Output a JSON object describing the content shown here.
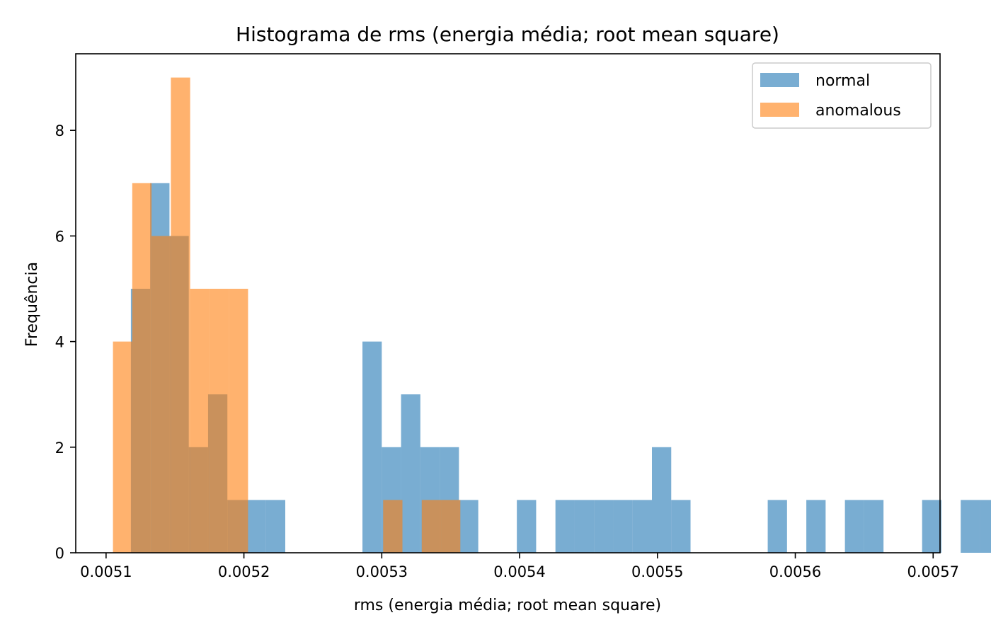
{
  "chart_data": {
    "type": "bar",
    "histogram": true,
    "title": "Histograma de rms (energia média; root mean square)",
    "xlabel": "rms (energia média; root mean square)",
    "ylabel": "Frequência",
    "xlim": [
      0.005078,
      0.005705
    ],
    "ylim": [
      0,
      9.45
    ],
    "grid": false,
    "legend_position": "top-right",
    "x_ticks": [
      {
        "value": 0.0051,
        "label": "0.0051"
      },
      {
        "value": 0.0052,
        "label": "0.0052"
      },
      {
        "value": 0.0053,
        "label": "0.0053"
      },
      {
        "value": 0.0054,
        "label": "0.0054"
      },
      {
        "value": 0.0055,
        "label": "0.0055"
      },
      {
        "value": 0.0056,
        "label": "0.0056"
      },
      {
        "value": 0.0057,
        "label": "0.0057"
      }
    ],
    "y_ticks": [
      {
        "value": 0,
        "label": "0"
      },
      {
        "value": 2,
        "label": "2"
      },
      {
        "value": 4,
        "label": "4"
      },
      {
        "value": 6,
        "label": "6"
      },
      {
        "value": 8,
        "label": "8"
      }
    ],
    "series": [
      {
        "name": "normal",
        "color": "#1f77b4",
        "opacity": 0.6,
        "bin_start": 0.005118,
        "bin_width": 1.4e-05,
        "counts": [
          5,
          7,
          6,
          2,
          3,
          1,
          1,
          1,
          0,
          0,
          0,
          0,
          4,
          2,
          3,
          2,
          2,
          1,
          0,
          0,
          1,
          0,
          1,
          1,
          1,
          1,
          1,
          2,
          1,
          0,
          0,
          0,
          0,
          1,
          0,
          1,
          0,
          1,
          1,
          0,
          0,
          1,
          0,
          1,
          1
        ]
      },
      {
        "name": "anomalous",
        "color": "#ff7f0e",
        "opacity": 0.6,
        "bin_start": 0.005105,
        "bin_width": 1.4e-05,
        "counts": [
          4,
          7,
          6,
          9,
          5,
          5,
          5,
          0,
          0,
          0,
          0,
          0,
          0,
          0,
          1,
          0,
          1,
          1,
          0,
          0,
          0,
          0,
          0,
          0,
          0,
          0,
          0,
          0,
          0,
          0,
          0,
          0,
          0,
          0,
          0,
          0,
          0,
          0,
          0,
          0,
          0,
          0,
          0,
          0,
          0,
          0,
          0,
          0,
          0,
          0,
          0,
          0,
          0,
          0,
          0,
          0,
          0,
          0,
          0,
          0,
          0,
          0,
          0,
          0,
          0,
          0,
          0,
          0,
          0,
          0,
          0,
          0,
          0
        ]
      }
    ]
  }
}
